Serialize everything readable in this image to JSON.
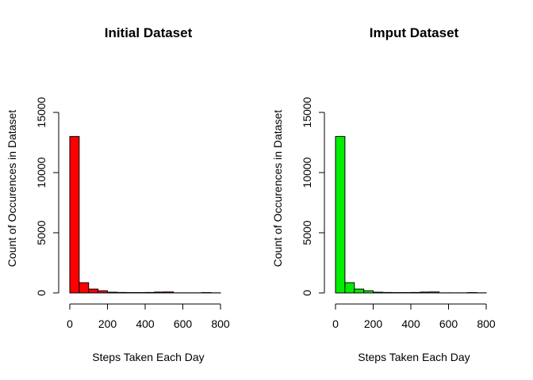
{
  "chart_data": [
    {
      "type": "bar",
      "title": "Initial Dataset",
      "xlabel": "Steps Taken Each Day",
      "ylabel": "Count of Occurences in Dataset",
      "color": "#ff0000",
      "bin_width": 50,
      "bins_start": [
        0,
        50,
        100,
        150,
        200,
        250,
        300,
        350,
        400,
        450,
        500,
        550,
        600,
        650,
        700,
        750
      ],
      "values": [
        13000,
        850,
        320,
        180,
        60,
        40,
        30,
        30,
        40,
        70,
        80,
        10,
        10,
        10,
        30,
        10
      ],
      "xlim": [
        0,
        800
      ],
      "ylim": [
        0,
        15000
      ],
      "xticks": [
        0,
        200,
        400,
        600,
        800
      ],
      "yticks": [
        0,
        5000,
        10000,
        15000
      ],
      "xtick_labels": [
        "0",
        "200",
        "400",
        "600",
        "800"
      ],
      "ytick_labels": [
        "0",
        "5000",
        "10000",
        "15000"
      ]
    },
    {
      "type": "bar",
      "title": "Imput Dataset",
      "xlabel": "Steps Taken Each Day",
      "ylabel": "Count of Occurences in Dataset",
      "color": "#00ee00",
      "bin_width": 50,
      "bins_start": [
        0,
        50,
        100,
        150,
        200,
        250,
        300,
        350,
        400,
        450,
        500,
        550,
        600,
        650,
        700,
        750
      ],
      "values": [
        13000,
        850,
        320,
        180,
        60,
        40,
        30,
        30,
        40,
        70,
        80,
        10,
        10,
        10,
        30,
        10
      ],
      "xlim": [
        0,
        800
      ],
      "ylim": [
        0,
        15000
      ],
      "xticks": [
        0,
        200,
        400,
        600,
        800
      ],
      "yticks": [
        0,
        5000,
        10000,
        15000
      ],
      "xtick_labels": [
        "0",
        "200",
        "400",
        "600",
        "800"
      ],
      "ytick_labels": [
        "0",
        "5000",
        "10000",
        "15000"
      ]
    }
  ]
}
